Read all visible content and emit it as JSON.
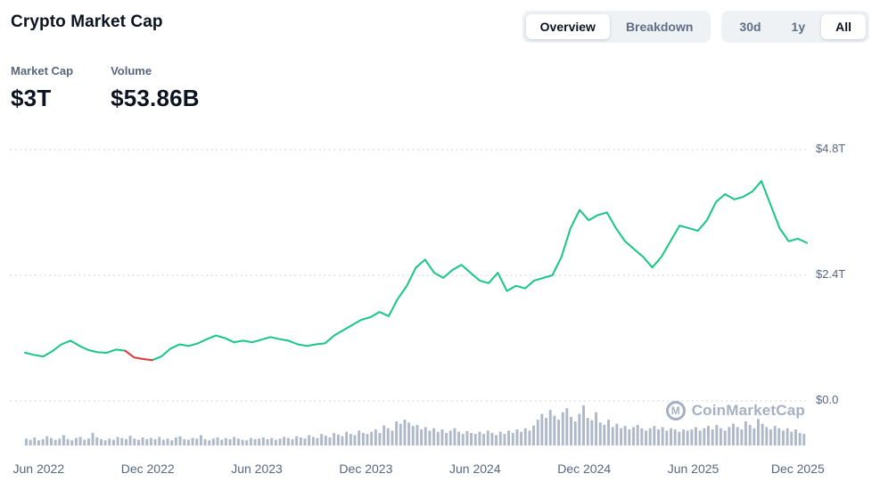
{
  "header": {
    "title": "Crypto Market Cap",
    "view_toggle": {
      "options": [
        "Overview",
        "Breakdown"
      ],
      "selected": "Overview"
    },
    "range_toggle": {
      "options": [
        "30d",
        "1y",
        "All"
      ],
      "selected": "All"
    }
  },
  "stats": {
    "market_cap": {
      "label": "Market Cap",
      "value": "$3T"
    },
    "volume": {
      "label": "Volume",
      "value": "$53.86B"
    }
  },
  "watermark": {
    "text": "CoinMarketCap",
    "icon": "coinmarketcap-logo"
  },
  "colors": {
    "line_green": "#16c784",
    "crash_red": "#ea3943",
    "volume_bar": "#aeb8c9",
    "text_primary": "#0d1421",
    "text_secondary": "#58667e",
    "toggle_bg": "#eff2f5",
    "watermark": "#a6b0c3"
  },
  "chart_data": {
    "type": "line",
    "title": "Crypto Market Cap — All time",
    "x_tick_labels": [
      "Jun 2022",
      "Dec 2022",
      "Jun 2023",
      "Dec 2023",
      "Jun 2024",
      "Dec 2024",
      "Jun 2025",
      "Dec 2025"
    ],
    "x_tick_indices": [
      1.5,
      13.5,
      25.5,
      37.5,
      49.5,
      61.5,
      73.5,
      85
    ],
    "ylim": [
      0,
      4.8
    ],
    "ytick_values": [
      4.8,
      2.4,
      0
    ],
    "ytick_labels": [
      "$4.8T",
      "$2.4T",
      "$0.0"
    ],
    "grid": "dotted-horizontal",
    "legend": "none",
    "series": [
      {
        "name": "Market Cap",
        "unit": "$T",
        "color": "#16c784",
        "cadence": "semi-monthly, mid-May 2022 to mid-Dec 2025",
        "values": [
          0.92,
          0.88,
          0.85,
          0.95,
          1.08,
          1.15,
          1.05,
          0.97,
          0.93,
          0.92,
          0.98,
          0.96,
          0.83,
          0.8,
          0.78,
          0.85,
          1.0,
          1.08,
          1.05,
          1.1,
          1.18,
          1.25,
          1.2,
          1.12,
          1.15,
          1.12,
          1.17,
          1.22,
          1.18,
          1.15,
          1.08,
          1.05,
          1.08,
          1.1,
          1.25,
          1.35,
          1.45,
          1.55,
          1.6,
          1.7,
          1.62,
          1.95,
          2.2,
          2.55,
          2.7,
          2.45,
          2.35,
          2.5,
          2.6,
          2.45,
          2.3,
          2.25,
          2.45,
          2.1,
          2.2,
          2.15,
          2.3,
          2.35,
          2.4,
          2.75,
          3.3,
          3.65,
          3.45,
          3.55,
          3.6,
          3.3,
          3.05,
          2.9,
          2.75,
          2.55,
          2.75,
          3.05,
          3.35,
          3.3,
          3.25,
          3.45,
          3.8,
          3.95,
          3.85,
          3.9,
          4.0,
          4.2,
          3.75,
          3.3,
          3.05,
          3.1,
          3.02
        ]
      }
    ],
    "crash_segment": {
      "note": "Nov-Dec 2022 drawdown rendered in red",
      "color": "#ea3943",
      "start_index": 11,
      "end_index": 14
    },
    "volume_bars": {
      "name": "Volume",
      "unit": "relative height",
      "color": "#aeb8c9",
      "values": [
        12,
        10,
        14,
        9,
        11,
        16,
        13,
        10,
        12,
        18,
        11,
        9,
        13,
        15,
        10,
        12,
        22,
        14,
        11,
        9,
        12,
        10,
        15,
        13,
        11,
        17,
        12,
        10,
        14,
        11,
        13,
        11,
        15,
        10,
        12,
        9,
        14,
        16,
        11,
        10,
        13,
        12,
        18,
        11,
        9,
        12,
        14,
        10,
        13,
        11,
        15,
        12,
        10,
        9,
        13,
        11,
        12,
        14,
        11,
        13,
        10,
        12,
        15,
        13,
        11,
        16,
        14,
        12,
        18,
        15,
        13,
        20,
        17,
        14,
        22,
        19,
        16,
        24,
        20,
        18,
        26,
        22,
        20,
        24,
        28,
        22,
        35,
        30,
        26,
        42,
        38,
        45,
        40,
        34,
        36,
        28,
        32,
        26,
        30,
        24,
        28,
        22,
        26,
        30,
        24,
        20,
        25,
        22,
        20,
        24,
        20,
        26,
        22,
        18,
        24,
        20,
        26,
        22,
        28,
        24,
        30,
        26,
        35,
        45,
        55,
        48,
        62,
        52,
        45,
        58,
        65,
        50,
        42,
        55,
        70,
        48,
        44,
        58,
        40,
        36,
        45,
        32,
        38,
        30,
        34,
        28,
        32,
        36,
        30,
        26,
        30,
        34,
        28,
        32,
        26,
        30,
        28,
        24,
        28,
        26,
        28,
        32,
        26,
        30,
        34,
        28,
        36,
        30,
        26,
        32,
        38,
        32,
        28,
        42,
        36,
        30,
        46,
        38,
        32,
        28,
        34,
        30,
        26,
        30,
        24,
        28,
        22,
        20
      ]
    }
  }
}
